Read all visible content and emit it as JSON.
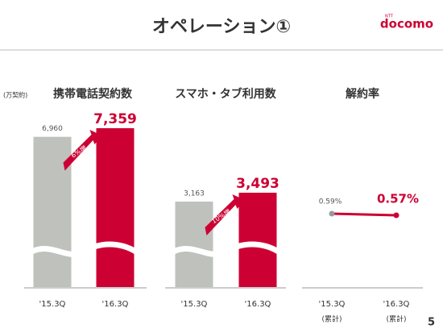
{
  "header": {
    "title": "オペレーション①",
    "logo_small": "NTT",
    "logo": "docomo",
    "page_number": "5"
  },
  "chart_data": [
    {
      "type": "bar",
      "title": "携帯電話契約数",
      "unit": "(万契約)",
      "categories": [
        "'15.3Q",
        "'16.3Q"
      ],
      "values": [
        6960,
        7359
      ],
      "value_labels": [
        "6,960",
        "7,359"
      ],
      "colors": [
        "#bfc1bc",
        "#cc0033"
      ],
      "annotation": "6%増"
    },
    {
      "type": "bar",
      "title": "スマホ・タブ利用数",
      "categories": [
        "'15.3Q",
        "'16.3Q"
      ],
      "values": [
        3163,
        3493
      ],
      "value_labels": [
        "3,163",
        "3,493"
      ],
      "colors": [
        "#bfc1bc",
        "#cc0033"
      ],
      "annotation": "10%増"
    },
    {
      "type": "line",
      "title": "解約率",
      "categories": [
        "'15.3Q",
        "'16.3Q"
      ],
      "category_notes": [
        "(累計)",
        "(累計)"
      ],
      "values": [
        0.59,
        0.57
      ],
      "value_labels": [
        "0.59%",
        "0.57%"
      ],
      "colors": [
        "#999999",
        "#cc0033"
      ]
    }
  ]
}
